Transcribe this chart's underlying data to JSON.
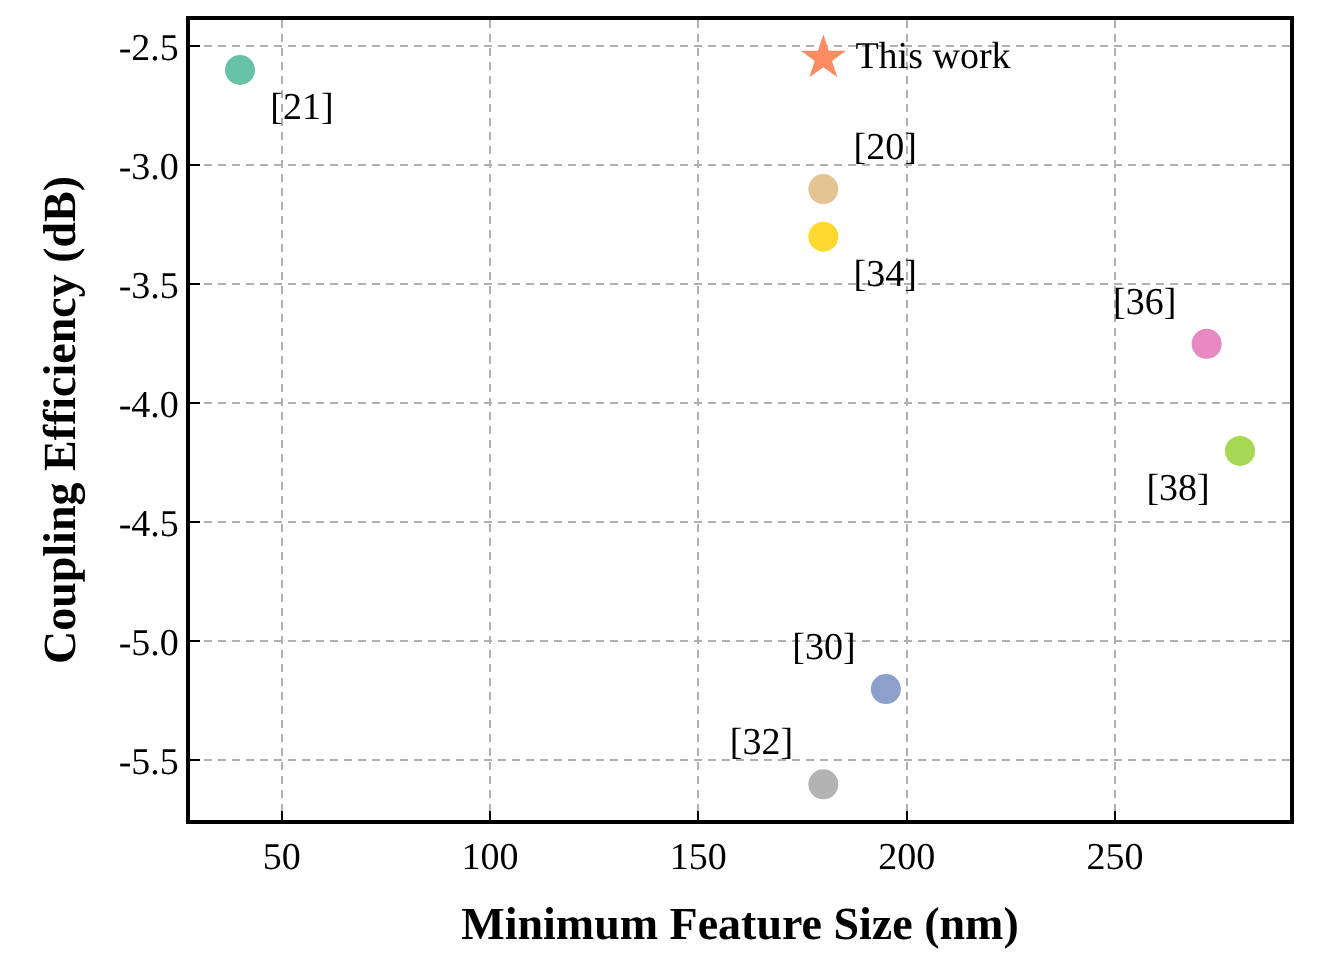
{
  "chart_data": {
    "type": "scatter",
    "xlabel": "Minimum Feature Size (nm)",
    "ylabel": "Coupling Efficiency (dB)",
    "xlim": [
      28,
      292
    ],
    "ylim": [
      -5.75,
      -2.39
    ],
    "xticks": [
      50,
      100,
      150,
      200,
      250
    ],
    "yticks": [
      -2.5,
      {
        "value": -3,
        "label": "-3.0"
      },
      -3.5,
      {
        "value": -4,
        "label": "-4.0"
      },
      -4.5,
      {
        "value": -5,
        "label": "-5.0"
      },
      -5.5
    ],
    "grid": true,
    "marker": "circle",
    "series": [
      {
        "name": "[21]",
        "color": "#66c2a5",
        "x": [
          40
        ],
        "values": [
          -2.6
        ]
      },
      {
        "name": "[20]",
        "color": "#e5c494",
        "x": [
          180
        ],
        "values": [
          -3.1
        ]
      },
      {
        "name": "[34]",
        "color": "#ffd92f",
        "x": [
          180
        ],
        "values": [
          -3.3
        ]
      },
      {
        "name": "[36]",
        "color": "#e78ac3",
        "x": [
          272
        ],
        "values": [
          -3.75
        ]
      },
      {
        "name": "[38]",
        "color": "#a6d854",
        "x": [
          280
        ],
        "values": [
          -4.2
        ]
      },
      {
        "name": "[30]",
        "color": "#8da0cb",
        "x": [
          195
        ],
        "values": [
          -5.2
        ]
      },
      {
        "name": "[32]",
        "color": "#b3b3b3",
        "x": [
          180
        ],
        "values": [
          -5.6
        ]
      },
      {
        "name": "This work",
        "color": "#fc8d62",
        "x": [
          180
        ],
        "values": [
          -2.55
        ],
        "marker": "star"
      }
    ]
  }
}
